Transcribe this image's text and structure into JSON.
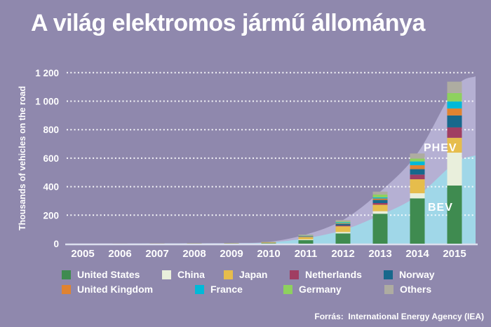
{
  "title": "A világ elektromos jármű állománya",
  "source": "Forrás:  International Energy Agency (IEA)",
  "chart_data": {
    "type": "bar",
    "stacked": true,
    "title": "A világ elektromos jármű állománya",
    "ylabel": "Thousands of vehicles on the road",
    "ylim": [
      0,
      1200
    ],
    "grid": "dotted-horizontal",
    "ytick_values": [
      0,
      200,
      400,
      600,
      800,
      1000,
      1200
    ],
    "ytick_labels": [
      "0",
      "200",
      "400",
      "600",
      "800",
      "1 000",
      "1 200"
    ],
    "categories": [
      "2005",
      "2006",
      "2007",
      "2008",
      "2009",
      "2010",
      "2011",
      "2012",
      "2013",
      "2014",
      "2015"
    ],
    "series": [
      {
        "name": "United States",
        "color": "#3f8b50",
        "values": [
          0,
          0,
          0,
          1,
          1,
          3,
          25,
          72,
          210,
          318,
          408
        ]
      },
      {
        "name": "China",
        "color": "#e9efdc",
        "values": [
          0,
          0,
          0,
          0,
          0,
          1,
          5,
          10,
          18,
          36,
          231
        ]
      },
      {
        "name": "Japan",
        "color": "#e6bd4c",
        "values": [
          0,
          0,
          1,
          1,
          2,
          4,
          17,
          40,
          45,
          98,
          104
        ]
      },
      {
        "name": "Netherlands",
        "color": "#a03e62",
        "values": [
          0,
          0,
          0,
          0,
          0,
          0,
          1,
          6,
          12,
          33,
          73
        ]
      },
      {
        "name": "Norway",
        "color": "#17688c",
        "values": [
          0,
          0,
          0,
          0,
          1,
          1,
          3,
          10,
          22,
          38,
          84
        ]
      },
      {
        "name": "United Kingdom",
        "color": "#e08331",
        "values": [
          0,
          0,
          0,
          0,
          0,
          1,
          2,
          5,
          10,
          28,
          49
        ]
      },
      {
        "name": "France",
        "color": "#00b9d8",
        "values": [
          0,
          0,
          0,
          0,
          0,
          0,
          2,
          6,
          8,
          26,
          49
        ]
      },
      {
        "name": "Germany",
        "color": "#8ed15e",
        "values": [
          0,
          0,
          0,
          0,
          0,
          1,
          2,
          6,
          20,
          20,
          59
        ]
      },
      {
        "name": "Others",
        "color": "#aeaca1",
        "values": [
          0.5,
          1,
          1,
          1,
          1,
          2,
          7,
          11,
          20,
          36,
          80
        ]
      }
    ],
    "totals": [
      0.5,
      1,
      2,
      3,
      5,
      13,
      64,
      166,
      365,
      633,
      1137
    ],
    "areas": [
      {
        "name": "PHEV",
        "color": "#b5b0d3",
        "values": [
          0.5,
          1,
          2,
          3,
          5,
          13,
          64,
          166,
          365,
          633,
          1090
        ],
        "edge_value": 1175
      },
      {
        "name": "BEV",
        "color": "#a0d7e8",
        "values": [
          0,
          0,
          1,
          1,
          2,
          8,
          38,
          95,
          200,
          335,
          565
        ],
        "edge_value": 620
      }
    ],
    "annotations": [
      {
        "text": "PHEV",
        "x": 604,
        "y": 216
      },
      {
        "text": "BEV",
        "x": 610,
        "y": 301
      }
    ],
    "legend_rows": [
      [
        "United States",
        "China",
        "Japan",
        "Netherlands",
        "Norway"
      ],
      [
        "United Kingdom",
        "France",
        "Germany",
        "Others"
      ]
    ]
  }
}
